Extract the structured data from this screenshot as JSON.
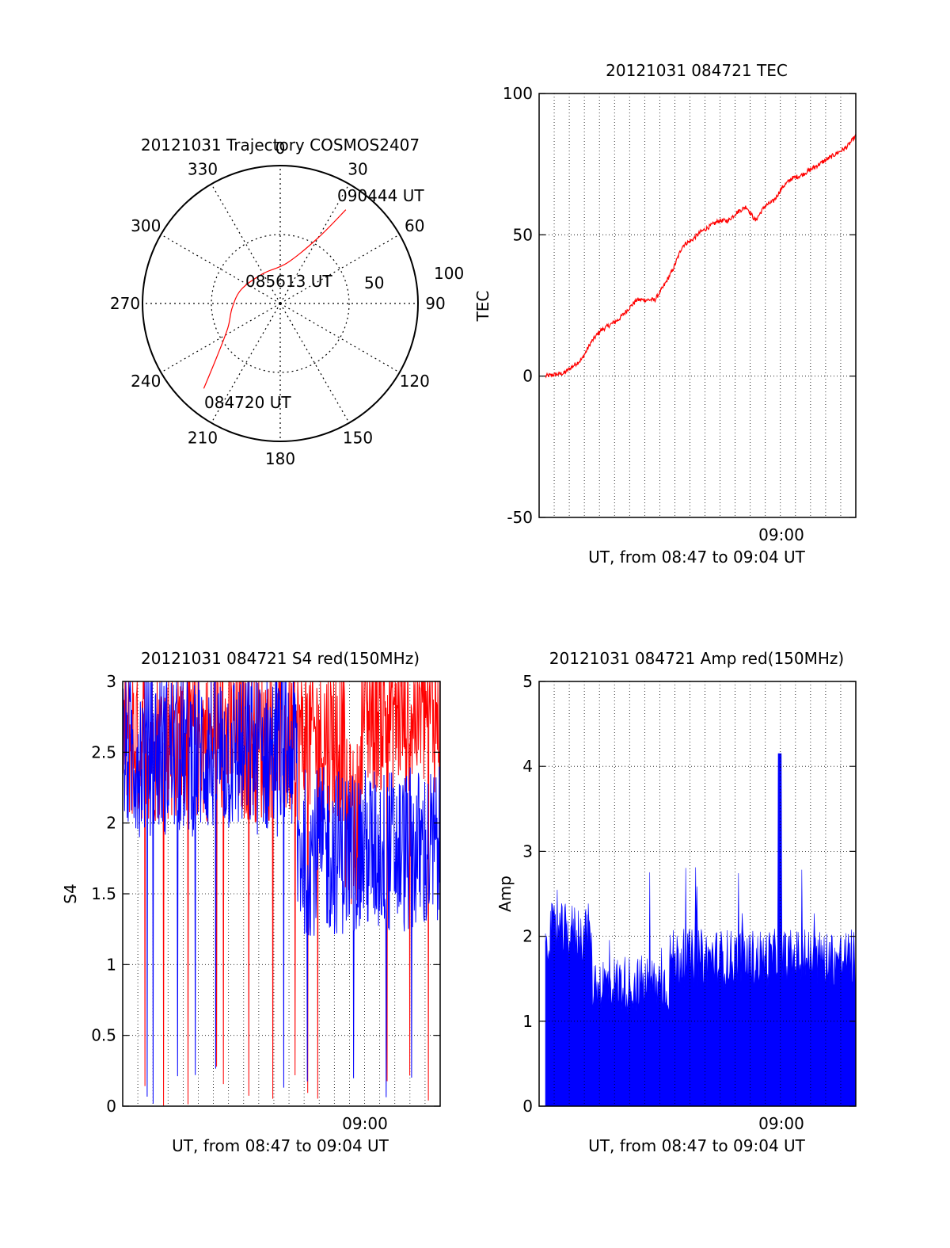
{
  "colors": {
    "red": "#ff0000",
    "blue": "#0000ff",
    "axis": "#000000",
    "grid": "#000000",
    "background": "#ffffff"
  },
  "chart_data": [
    {
      "type": "polar",
      "title": "20121031 Trajectory COSMOS2407",
      "azimuth_labels": [
        "0",
        "30",
        "60",
        "90",
        "120",
        "150",
        "180",
        "210",
        "240",
        "270",
        "300",
        "330"
      ],
      "radius_labels": [
        "50",
        "100"
      ],
      "elevation_max": 100,
      "trajectory": {
        "color": "red",
        "start_label": "084720 UT",
        "mid_label": "085613 UT",
        "end_label": "090444 UT",
        "points": [
          [
            222,
            83
          ],
          [
            230,
            60
          ],
          [
            245,
            42
          ],
          [
            265,
            35
          ],
          [
            290,
            30
          ],
          [
            330,
            25
          ],
          [
            10,
            30
          ],
          [
            30,
            55
          ],
          [
            35,
            83
          ]
        ]
      }
    },
    {
      "type": "line",
      "title": "20121031 084721 TEC",
      "ylabel": "TEC",
      "xlabel": "UT, from 08:47 to 09:04 UT",
      "xtick_labels": [
        "09:00"
      ],
      "ytick_labels": [
        "100",
        "50",
        "0",
        "-50"
      ],
      "ylim": [
        -50,
        100
      ],
      "grid": true,
      "series": [
        {
          "color": "red",
          "x_minutes_after_0847": [
            0,
            1,
            2,
            2.5,
            3,
            3.5,
            4,
            5,
            6,
            6.5,
            7,
            7.5,
            7.7,
            8,
            8.5,
            9,
            9.5,
            10,
            10.5,
            11,
            11.5,
            12,
            12.5,
            13,
            13.5,
            14,
            14.5,
            15,
            15.5,
            16,
            16.5,
            17
          ],
          "values": [
            0,
            1,
            6,
            12,
            16,
            18,
            20,
            27,
            27,
            32,
            38,
            46,
            47,
            48,
            51,
            53,
            55,
            55,
            58,
            60,
            55,
            60,
            62,
            67,
            70,
            71,
            73,
            75,
            77,
            79,
            81,
            85
          ]
        }
      ]
    },
    {
      "type": "line",
      "title": "20121031 084721 S4 red(150MHz)",
      "ylabel": "S4",
      "xlabel": "UT, from 08:47 to 09:04 UT",
      "xtick_labels": [
        "09:00"
      ],
      "ytick_labels": [
        "0",
        "0.5",
        "1",
        "1.5",
        "2",
        "2.5",
        "3"
      ],
      "ylim": [
        0,
        3
      ],
      "grid": true,
      "series": [
        {
          "color": "red",
          "note_range": [
            1.2,
            3.0
          ]
        },
        {
          "color": "blue",
          "note_range": [
            1.0,
            3.0
          ]
        }
      ]
    },
    {
      "type": "bar",
      "title": "20121031 084721 Amp red(150MHz)",
      "ylabel": "Amp",
      "xlabel": "UT, from 08:47 to 09:04 UT",
      "xtick_labels": [
        "09:00"
      ],
      "ytick_labels": [
        "0",
        "1",
        "2",
        "3",
        "4",
        "5"
      ],
      "ylim": [
        0,
        5
      ],
      "grid": true,
      "series": [
        {
          "color": "blue",
          "peak": 4.15
        }
      ]
    }
  ]
}
